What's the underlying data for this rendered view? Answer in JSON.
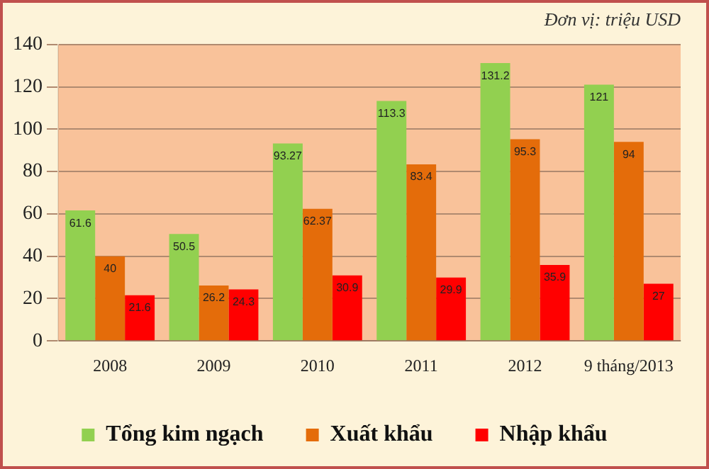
{
  "chart_data": {
    "type": "bar",
    "annotations": [
      "Đơn vị: triệu USD"
    ],
    "categories": [
      "2008",
      "2009",
      "2010",
      "2011",
      "2012",
      "9 tháng/2013"
    ],
    "series": [
      {
        "name": "Tổng kim ngạch",
        "color": "#92d050",
        "values": [
          61.6,
          50.5,
          93.27,
          113.3,
          131.2,
          121
        ]
      },
      {
        "name": "Xuất khẩu",
        "color": "#e46c0a",
        "values": [
          40,
          26.2,
          62.37,
          83.4,
          95.3,
          94
        ]
      },
      {
        "name": "Nhập khẩu",
        "color": "#ff0000",
        "values": [
          21.6,
          24.3,
          30.9,
          29.9,
          35.9,
          27
        ]
      }
    ],
    "ylim": [
      0,
      140
    ],
    "yticks": [
      0,
      20,
      40,
      60,
      80,
      100,
      120,
      140
    ],
    "grid": "y",
    "legend": "bottom",
    "data_labels": true
  }
}
